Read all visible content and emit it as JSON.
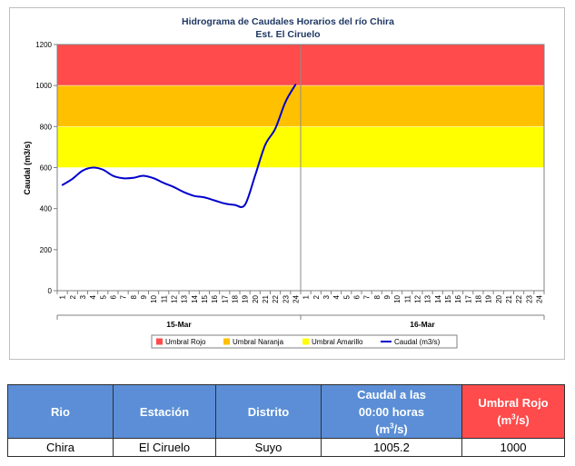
{
  "chart_data": {
    "type": "line",
    "title": "Hidrograma de Caudales Horarios del río Chira",
    "subtitle": "Est. El Ciruelo",
    "ylabel": "Caudal  (m3/s)",
    "ylim": [
      0,
      1200
    ],
    "yticks": [
      0,
      200,
      400,
      600,
      800,
      1000,
      1200
    ],
    "xlim": [
      1,
      48
    ],
    "x_tick_labels": [
      "1",
      "2",
      "3",
      "4",
      "5",
      "6",
      "7",
      "8",
      "9",
      "10",
      "11",
      "12",
      "13",
      "14",
      "15",
      "16",
      "17",
      "18",
      "19",
      "20",
      "21",
      "22",
      "23",
      "24",
      "1",
      "2",
      "3",
      "4",
      "5",
      "6",
      "7",
      "8",
      "9",
      "10",
      "11",
      "12",
      "13",
      "14",
      "15",
      "16",
      "17",
      "18",
      "19",
      "20",
      "21",
      "22",
      "23",
      "24"
    ],
    "date_labels": [
      "15-Mar",
      "16-Mar"
    ],
    "thresholds": [
      {
        "name": "Umbral Rojo",
        "from": 1000,
        "to": 1200,
        "color": "#ff4b4b"
      },
      {
        "name": "Umbral Naranja",
        "from": 800,
        "to": 1000,
        "color": "#ffc000"
      },
      {
        "name": "Umbral Amarillo",
        "from": 600,
        "to": 800,
        "color": "#ffff00"
      }
    ],
    "series": [
      {
        "name": "Caudal (m3/s)",
        "color": "#0000cc",
        "x": [
          1,
          2,
          3,
          4,
          5,
          6,
          7,
          8,
          9,
          10,
          11,
          12,
          13,
          14,
          15,
          16,
          17,
          18,
          19,
          20,
          21,
          22,
          23,
          24
        ],
        "y": [
          515,
          545,
          585,
          600,
          590,
          560,
          548,
          550,
          560,
          548,
          525,
          505,
          480,
          462,
          455,
          440,
          425,
          418,
          418,
          560,
          710,
          790,
          920,
          1005
        ]
      }
    ],
    "legend": [
      "Umbral Rojo",
      "Umbral Naranja",
      "Umbral Amarillo",
      "Caudal (m3/s)"
    ],
    "legend_position": "bottom",
    "grid": false
  },
  "table": {
    "headers": {
      "rio": "Rio",
      "estacion": "Estación",
      "distrito": "Distrito",
      "caudal_line1": "Caudal a las",
      "caudal_line2": "00:00 horas",
      "caudal_unit_pre": "(m",
      "caudal_unit_sup": "3",
      "caudal_unit_post": "/s)",
      "umbral_line1": "Umbral Rojo",
      "umbral_unit_pre": "(m",
      "umbral_unit_sup": "3",
      "umbral_unit_post": "/s)"
    },
    "row": {
      "rio": "Chira",
      "estacion": "El Ciruelo",
      "distrito": "Suyo",
      "caudal": "1005.2",
      "umbral": "1000"
    }
  }
}
